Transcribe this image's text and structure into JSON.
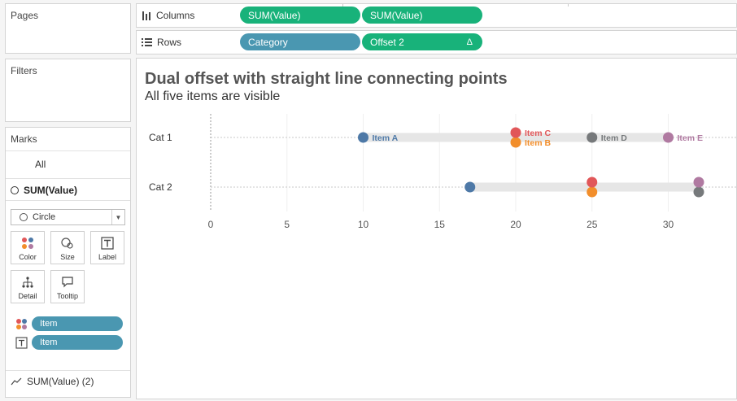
{
  "panels": {
    "pages_title": "Pages",
    "filters_title": "Filters",
    "marks_title": "Marks"
  },
  "marks": {
    "all_label": "All",
    "measure_label": "SUM(Value)",
    "mark_type": "Circle",
    "buttons": [
      "Color",
      "Size",
      "Label",
      "Detail",
      "Tooltip"
    ],
    "color_pill": "Item",
    "label_pill": "Item",
    "second_measure": "SUM(Value) (2)"
  },
  "shelves": {
    "columns_label": "Columns",
    "rows_label": "Rows",
    "columns_pills": [
      "SUM(Value)",
      "SUM(Value)"
    ],
    "rows_pills": [
      "Category",
      "Offset 2"
    ],
    "rows_pill_icon": "Δ"
  },
  "view": {
    "title": "Dual offset with straight line connecting points",
    "subtitle": "All five items are visible"
  },
  "colors": {
    "item_a": "#4e79a7",
    "item_b": "#f28e2b",
    "item_c": "#e15759",
    "item_d": "#76797b",
    "item_e": "#b07aa1",
    "pill_green": "#18b27a",
    "pill_blue": "#4a97b1",
    "bar": "#e6e6e6"
  },
  "chart_data": {
    "type": "scatter",
    "categories": [
      "Cat 1",
      "Cat 2"
    ],
    "x_ticks": [
      0,
      5,
      10,
      15,
      20,
      25,
      30
    ],
    "xlim": [
      0,
      34
    ],
    "series": [
      {
        "name": "Item A",
        "color": "#4e79a7",
        "points": [
          {
            "category": "Cat 1",
            "x": 10,
            "offset": "center"
          },
          {
            "category": "Cat 2",
            "x": 17,
            "offset": "center"
          }
        ]
      },
      {
        "name": "Item B",
        "color": "#f28e2b",
        "points": [
          {
            "category": "Cat 1",
            "x": 20,
            "offset": "lower"
          },
          {
            "category": "Cat 2",
            "x": 25,
            "offset": "lower"
          }
        ]
      },
      {
        "name": "Item C",
        "color": "#e15759",
        "points": [
          {
            "category": "Cat 1",
            "x": 20,
            "offset": "upper"
          },
          {
            "category": "Cat 2",
            "x": 25,
            "offset": "upper"
          }
        ]
      },
      {
        "name": "Item D",
        "color": "#76797b",
        "points": [
          {
            "category": "Cat 1",
            "x": 25,
            "offset": "center"
          },
          {
            "category": "Cat 2",
            "x": 32,
            "offset": "lower"
          }
        ]
      },
      {
        "name": "Item E",
        "color": "#b07aa1",
        "points": [
          {
            "category": "Cat 1",
            "x": 30,
            "offset": "center"
          },
          {
            "category": "Cat 2",
            "x": 32,
            "offset": "upper"
          }
        ]
      }
    ],
    "ranges": [
      {
        "category": "Cat 1",
        "from": 10,
        "to": 30
      },
      {
        "category": "Cat 2",
        "from": 17,
        "to": 32
      }
    ],
    "point_labels": [
      {
        "category": "Cat 1",
        "series": "Item A",
        "text": "Item A"
      },
      {
        "category": "Cat 1",
        "series": "Item B",
        "text": "Item B"
      },
      {
        "category": "Cat 1",
        "series": "Item C",
        "text": "Item C"
      },
      {
        "category": "Cat 1",
        "series": "Item D",
        "text": "Item D"
      },
      {
        "category": "Cat 1",
        "series": "Item E",
        "text": "Item E"
      }
    ]
  }
}
